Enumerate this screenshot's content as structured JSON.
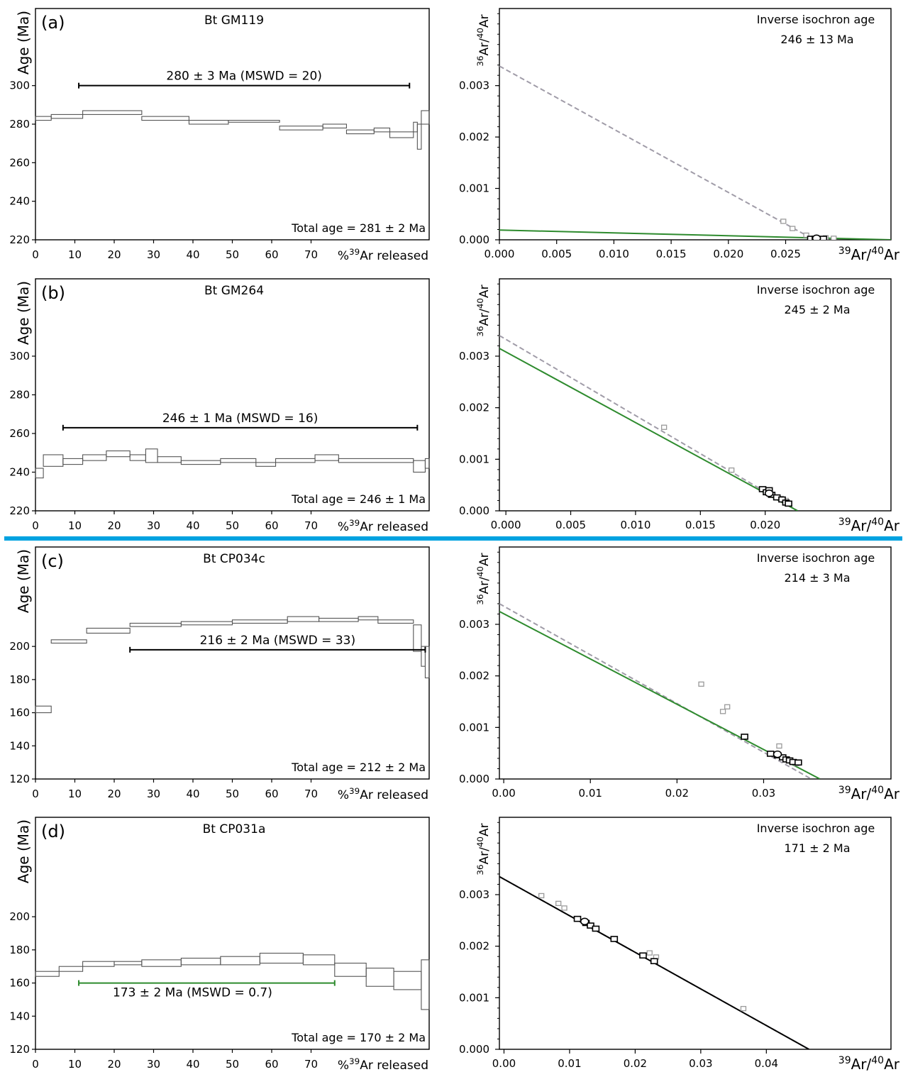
{
  "separator_color": "#00a2e0",
  "colors": {
    "axis": "#000000",
    "step": "#555555",
    "dashed": "#a09ca8",
    "green": "#2e8b2e",
    "black_fit": "#000000",
    "grey_point": "#9a9a9a"
  },
  "chart_data": [
    {
      "type": "step",
      "panel_label": "(a)",
      "title": "Bt GM119",
      "ylabel": "Age (Ma)",
      "xlabel": "%39Ar released",
      "xlim": [
        0,
        100
      ],
      "ylim": [
        220,
        340
      ],
      "xticks": [
        0,
        10,
        20,
        30,
        40,
        50,
        60,
        70
      ],
      "yticks": [
        220,
        240,
        260,
        280,
        300
      ],
      "plateau": {
        "label": "280 ± 3 Ma (MSWD = 20)",
        "x": [
          11,
          95
        ],
        "y": 300,
        "color": "#000000"
      },
      "total_age": "Total age = 281 ± 2 Ma",
      "steps": [
        [
          0,
          4,
          282,
          284
        ],
        [
          4,
          12,
          283,
          285
        ],
        [
          12,
          27,
          285,
          287
        ],
        [
          27,
          39,
          282,
          284
        ],
        [
          39,
          49,
          280,
          282
        ],
        [
          49,
          62,
          281,
          282
        ],
        [
          62,
          73,
          277,
          279
        ],
        [
          73,
          79,
          278,
          280
        ],
        [
          79,
          86,
          275,
          277
        ],
        [
          86,
          90,
          276,
          278
        ],
        [
          90,
          96,
          273,
          276
        ],
        [
          96,
          97,
          276,
          281
        ],
        [
          97,
          98,
          267,
          280
        ],
        [
          98,
          100,
          280,
          287
        ]
      ]
    },
    {
      "type": "scatter",
      "title": "Inverse isochron age",
      "subtitle": "246 ± 13 Ma",
      "xlabel": "39Ar/40Ar",
      "ylabel": "36Ar/40Ar",
      "xlim": [
        0,
        0.0342
      ],
      "ylim": [
        0,
        0.0045
      ],
      "xticks": [
        "0.000",
        "0.005",
        "0.010",
        "0.015",
        "0.020",
        "0.025"
      ],
      "yticks": [
        "0.000",
        "0.001",
        "0.002",
        "0.003"
      ],
      "xtick_values": [
        0,
        0.005,
        0.01,
        0.015,
        0.02,
        0.025
      ],
      "ytick_values": [
        0,
        0.001,
        0.002,
        0.003
      ],
      "fit_dashed": [
        [
          0,
          0.00338
        ],
        [
          0.0275,
          0
        ]
      ],
      "fit_solid": {
        "line": [
          [
            0,
            0.00019
          ],
          [
            0.0342,
            0
          ]
        ],
        "color": "#2e8b2e"
      },
      "grey_points": [
        [
          0.0248,
          0.00036
        ],
        [
          0.0256,
          0.00022
        ],
        [
          0.0268,
          9e-05
        ],
        [
          0.0285,
          4e-05
        ],
        [
          0.0292,
          3e-05
        ]
      ],
      "black_points": [
        [
          0.0272,
          2e-05
        ],
        [
          0.0276,
          2e-05
        ],
        [
          0.028,
          1e-05
        ],
        [
          0.0283,
          2e-05
        ]
      ],
      "mean_point": [
        0.0277,
        3e-05
      ]
    },
    {
      "type": "step",
      "panel_label": "(b)",
      "title": "Bt GM264",
      "ylabel": "Age (Ma)",
      "xlabel": "%39Ar released",
      "xlim": [
        0,
        100
      ],
      "ylim": [
        220,
        340
      ],
      "xticks": [
        0,
        10,
        20,
        30,
        40,
        50,
        60,
        70
      ],
      "yticks": [
        220,
        240,
        260,
        280,
        300
      ],
      "plateau": {
        "label": "246 ± 1 Ma (MSWD = 16)",
        "x": [
          7,
          97
        ],
        "y": 263,
        "color": "#000000"
      },
      "total_age": "Total age = 246 ± 1 Ma",
      "steps": [
        [
          0,
          2,
          237,
          242
        ],
        [
          2,
          7,
          243,
          249
        ],
        [
          7,
          12,
          244,
          247
        ],
        [
          12,
          18,
          246,
          249
        ],
        [
          18,
          24,
          248,
          251
        ],
        [
          24,
          28,
          246,
          249
        ],
        [
          28,
          31,
          245,
          252
        ],
        [
          31,
          37,
          245,
          248
        ],
        [
          37,
          47,
          244,
          246
        ],
        [
          47,
          56,
          245,
          247
        ],
        [
          56,
          61,
          243,
          245
        ],
        [
          61,
          71,
          245,
          247
        ],
        [
          71,
          77,
          246,
          249
        ],
        [
          77,
          96,
          245,
          247
        ],
        [
          96,
          99,
          240,
          246
        ],
        [
          99,
          100,
          242,
          247
        ]
      ]
    },
    {
      "type": "scatter",
      "title": "Inverse isochron age",
      "subtitle": "245 ± 2 Ma",
      "xlabel": "39Ar/40Ar",
      "ylabel": "36Ar/40Ar",
      "xlim": [
        -0.0005,
        0.0297
      ],
      "ylim": [
        0,
        0.0045
      ],
      "xticks": [
        "0.000",
        "0.005",
        "0.010",
        "0.015",
        "0.020"
      ],
      "yticks": [
        "0.000",
        "0.001",
        "0.002",
        "0.003"
      ],
      "xtick_values": [
        0,
        0.005,
        0.01,
        0.015,
        0.02
      ],
      "ytick_values": [
        0,
        0.001,
        0.002,
        0.003
      ],
      "fit_dashed": [
        [
          -0.0005,
          0.0034
        ],
        [
          0.0225,
          0
        ]
      ],
      "fit_solid": {
        "line": [
          [
            -0.0005,
            0.00315
          ],
          [
            0.0225,
            0
          ]
        ],
        "color": "#2e8b2e"
      },
      "grey_points": [
        [
          0.0122,
          0.00162
        ],
        [
          0.0174,
          0.00079
        ],
        [
          0.0212,
          0.00024
        ],
        [
          0.0216,
          0.0002
        ]
      ],
      "black_points": [
        [
          0.0198,
          0.00042
        ],
        [
          0.0201,
          0.00036
        ],
        [
          0.0205,
          0.00031
        ],
        [
          0.0209,
          0.00026
        ],
        [
          0.0213,
          0.00022
        ],
        [
          0.0216,
          0.00016
        ],
        [
          0.0218,
          0.00014
        ],
        [
          0.0203,
          0.0004
        ]
      ],
      "mean_point": [
        0.0203,
        0.00034
      ]
    },
    {
      "type": "step",
      "panel_label": "(c)",
      "title": "Bt CP034c",
      "ylabel": "Age (Ma)",
      "xlabel": "%39Ar released",
      "xlim": [
        0,
        100
      ],
      "ylim": [
        120,
        260
      ],
      "xticks": [
        0,
        10,
        20,
        30,
        40,
        50,
        60,
        70
      ],
      "yticks": [
        120,
        140,
        160,
        180,
        200
      ],
      "plateau": {
        "label": "216 ± 2 Ma (MSWD = 33)",
        "x": [
          24,
          99
        ],
        "y": 198,
        "color": "#000000"
      },
      "total_age": "Total age = 212 ± 2 Ma",
      "steps": [
        [
          0,
          4,
          160,
          164
        ],
        [
          4,
          13,
          202,
          204
        ],
        [
          13,
          24,
          208,
          211
        ],
        [
          24,
          37,
          212,
          214
        ],
        [
          37,
          50,
          213,
          215
        ],
        [
          50,
          64,
          214,
          216
        ],
        [
          64,
          72,
          215,
          218
        ],
        [
          72,
          82,
          215,
          217
        ],
        [
          82,
          87,
          216,
          218
        ],
        [
          87,
          96,
          214,
          216
        ],
        [
          96,
          98,
          197,
          213
        ],
        [
          98,
          99,
          188,
          200
        ],
        [
          99,
          100,
          181,
          200
        ]
      ]
    },
    {
      "type": "scatter",
      "title": "Inverse isochron age",
      "subtitle": "214 ± 3 Ma",
      "xlabel": "39Ar/40Ar",
      "ylabel": "36Ar/40Ar",
      "xlim": [
        -0.0005,
        0.0447
      ],
      "ylim": [
        0,
        0.0045
      ],
      "xticks": [
        "0.00",
        "0.01",
        "0.02",
        "0.03"
      ],
      "yticks": [
        "0.000",
        "0.001",
        "0.002",
        "0.003"
      ],
      "xtick_values": [
        0,
        0.01,
        0.02,
        0.03
      ],
      "ytick_values": [
        0,
        0.001,
        0.002,
        0.003
      ],
      "fit_dashed": [
        [
          -0.0005,
          0.0034
        ],
        [
          0.0355,
          0
        ]
      ],
      "fit_solid": {
        "line": [
          [
            -0.0005,
            0.00325
          ],
          [
            0.0365,
            0
          ]
        ],
        "color": "#2e8b2e"
      },
      "grey_points": [
        [
          0.0228,
          0.00184
        ],
        [
          0.0253,
          0.00131
        ],
        [
          0.0258,
          0.0014
        ],
        [
          0.0318,
          0.00064
        ],
        [
          0.0338,
          0.0003
        ]
      ],
      "black_points": [
        [
          0.0278,
          0.00082
        ],
        [
          0.0308,
          0.00049
        ],
        [
          0.0316,
          0.00046
        ],
        [
          0.0322,
          0.00042
        ],
        [
          0.0326,
          0.00038
        ],
        [
          0.033,
          0.00036
        ],
        [
          0.0334,
          0.00033
        ],
        [
          0.034,
          0.00032
        ]
      ],
      "mean_point": [
        0.0316,
        0.00048
      ]
    },
    {
      "type": "step",
      "panel_label": "(d)",
      "title": "Bt CP031a",
      "ylabel": "Age (Ma)",
      "xlabel": "%39Ar released",
      "xlim": [
        0,
        100
      ],
      "ylim": [
        120,
        260
      ],
      "xticks": [
        0,
        10,
        20,
        30,
        40,
        50,
        60,
        70
      ],
      "yticks": [
        120,
        140,
        160,
        180,
        200
      ],
      "plateau": {
        "label": "173 ± 2 Ma (MSWD = 0.7)",
        "x": [
          11,
          76
        ],
        "y": 160,
        "color": "#2e8b2e"
      },
      "total_age": "Total age = 170 ± 2 Ma",
      "steps": [
        [
          0,
          6,
          164,
          167
        ],
        [
          6,
          12,
          167,
          170
        ],
        [
          12,
          20,
          170,
          173
        ],
        [
          20,
          27,
          171,
          173
        ],
        [
          27,
          37,
          170,
          174
        ],
        [
          37,
          47,
          171,
          175
        ],
        [
          47,
          57,
          171,
          176
        ],
        [
          57,
          68,
          172,
          178
        ],
        [
          68,
          76,
          171,
          177
        ],
        [
          76,
          84,
          164,
          172
        ],
        [
          84,
          91,
          158,
          169
        ],
        [
          91,
          98,
          156,
          167
        ],
        [
          98,
          100,
          144,
          174
        ]
      ]
    },
    {
      "type": "scatter",
      "title": "Inverse isochron age",
      "subtitle": "171 ± 2 Ma",
      "xlabel": "39Ar/40Ar",
      "ylabel": "36Ar/40Ar",
      "xlim": [
        -0.0007,
        0.059
      ],
      "ylim": [
        0,
        0.0045
      ],
      "xticks": [
        "0.00",
        "0.01",
        "0.02",
        "0.03",
        "0.04"
      ],
      "yticks": [
        "0.000",
        "0.001",
        "0.002",
        "0.003"
      ],
      "xtick_values": [
        0,
        0.01,
        0.02,
        0.03,
        0.04
      ],
      "ytick_values": [
        0,
        0.001,
        0.002,
        0.003
      ],
      "fit_dashed": [
        [
          -0.0007,
          0.00335
        ],
        [
          0.0465,
          0
        ]
      ],
      "fit_solid": {
        "line": [
          [
            -0.0007,
            0.00335
          ],
          [
            0.0465,
            0
          ]
        ],
        "color": "#000000"
      },
      "grey_points": [
        [
          0.0057,
          0.00298
        ],
        [
          0.0083,
          0.00283
        ],
        [
          0.0092,
          0.00274
        ],
        [
          0.0222,
          0.00187
        ],
        [
          0.0232,
          0.00179
        ],
        [
          0.0365,
          0.00079
        ]
      ],
      "black_points": [
        [
          0.0112,
          0.00253
        ],
        [
          0.0125,
          0.00245
        ],
        [
          0.0132,
          0.0024
        ],
        [
          0.014,
          0.00234
        ],
        [
          0.0168,
          0.00214
        ],
        [
          0.0212,
          0.00182
        ],
        [
          0.0229,
          0.00171
        ]
      ],
      "mean_point": [
        0.0123,
        0.00248
      ]
    }
  ]
}
